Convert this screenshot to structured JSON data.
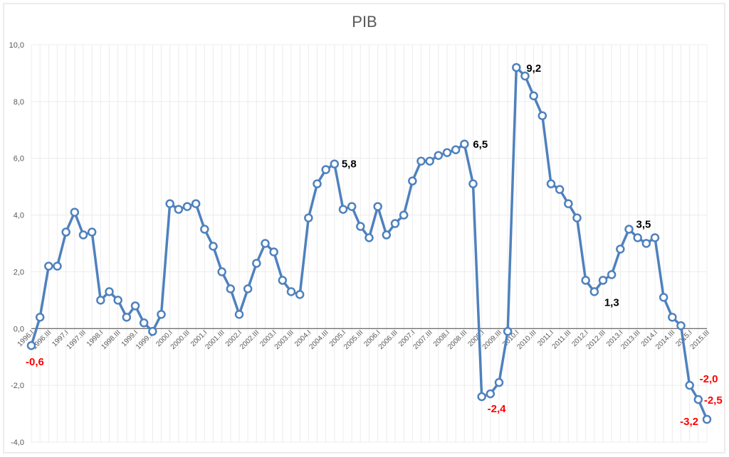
{
  "chart_data": {
    "type": "line",
    "title": "PIB",
    "xlabel": "",
    "ylabel": "",
    "ylim": [
      -4,
      10
    ],
    "yticks": [
      "-4,0",
      "-2,0",
      "0,0",
      "2,0",
      "4,0",
      "6,0",
      "8,0",
      "10,0"
    ],
    "grid": true,
    "legend": "none",
    "line_color": "#4f81bd",
    "negative_label_color": "#ff0000",
    "positive_label_color": "#000000",
    "categories": [
      "1996.I",
      "1996.II",
      "1996.III",
      "1996.IV",
      "1997.I",
      "1997.II",
      "1997.III",
      "1997.IV",
      "1998.I",
      "1998.II",
      "1998.III",
      "1998.IV",
      "1999.I",
      "1999.II",
      "1999.III",
      "1999.IV",
      "2000.I",
      "2000.II",
      "2000.III",
      "2000.IV",
      "2001.I",
      "2001.II",
      "2001.III",
      "2001.IV",
      "2002.I",
      "2002.II",
      "2002.III",
      "2002.IV",
      "2003.I",
      "2003.II",
      "2003.III",
      "2003.IV",
      "2004.I",
      "2004.II",
      "2004.III",
      "2004.IV",
      "2005.I",
      "2005.II",
      "2005.III",
      "2005.IV",
      "2006.I",
      "2006.II",
      "2006.III",
      "2006.IV",
      "2007.I",
      "2007.II",
      "2007.III",
      "2007.IV",
      "2008.I",
      "2008.II",
      "2008.III",
      "2008.IV",
      "2009.I",
      "2009.II",
      "2009.III",
      "2009.IV",
      "2010.I",
      "2010.II",
      "2010.III",
      "2010.IV",
      "2011.I",
      "2011.II",
      "2011.III",
      "2011.IV",
      "2012.I",
      "2012.II",
      "2012.III",
      "2012.IV",
      "2013.I",
      "2013.II",
      "2013.III",
      "2013.IV",
      "2014.I",
      "2014.II",
      "2014.III",
      "2014.IV",
      "2015.I",
      "2015.II",
      "2015.III"
    ],
    "values": [
      -0.6,
      0.4,
      2.2,
      2.2,
      3.4,
      4.1,
      3.3,
      3.4,
      1.0,
      1.3,
      1.0,
      0.4,
      0.8,
      0.2,
      -0.1,
      0.5,
      4.4,
      4.2,
      4.3,
      4.4,
      3.5,
      2.9,
      2.0,
      1.4,
      0.5,
      1.4,
      2.3,
      3.0,
      2.7,
      1.7,
      1.3,
      1.2,
      3.9,
      5.1,
      5.6,
      5.8,
      4.2,
      4.3,
      3.6,
      3.2,
      4.3,
      3.3,
      3.7,
      4.0,
      5.2,
      5.9,
      5.9,
      6.1,
      6.2,
      6.3,
      6.5,
      5.1,
      -2.4,
      -2.3,
      -1.9,
      -0.1,
      9.2,
      8.9,
      8.2,
      7.5,
      5.1,
      4.9,
      4.4,
      3.9,
      1.7,
      1.3,
      1.7,
      1.9,
      2.8,
      3.5,
      3.2,
      3.0,
      3.2,
      1.1,
      0.4,
      0.1,
      -2.0,
      -2.5,
      -3.2
    ],
    "data_labels": [
      {
        "category": "1996.I",
        "text": "-0,6"
      },
      {
        "category": "2004.IV",
        "text": "5,8"
      },
      {
        "category": "2008.III",
        "text": "6,5"
      },
      {
        "category": "2009.I",
        "text": "-2,4"
      },
      {
        "category": "2010.I",
        "text": "9,2"
      },
      {
        "category": "2012.II",
        "text": "1,3"
      },
      {
        "category": "2013.II",
        "text": "3,5"
      },
      {
        "category": "2015.I",
        "text": "-2,0"
      },
      {
        "category": "2015.II",
        "text": "-2,5"
      },
      {
        "category": "2015.III",
        "text": "-3,2"
      }
    ]
  }
}
